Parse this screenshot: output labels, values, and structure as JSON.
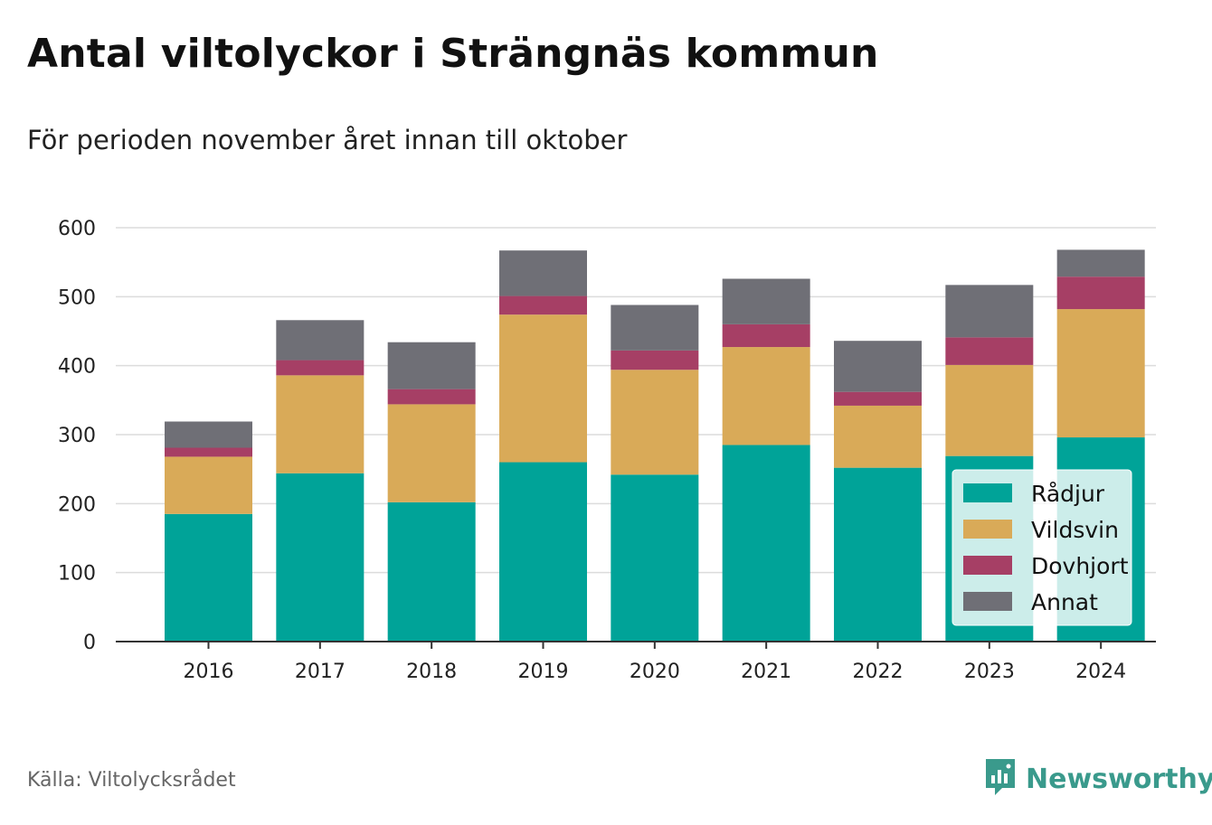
{
  "title": "Antal viltolyckor i Strängnäs kommun",
  "subtitle": "För perioden november året innan till oktober",
  "source": "Källa: Viltolycksrådet",
  "brand": {
    "name": "Newsworthy",
    "icon": "newsworthy-logo-icon",
    "color": "#3a9a8c"
  },
  "chart_data": {
    "type": "bar",
    "stacked": true,
    "categories": [
      "2016",
      "2017",
      "2018",
      "2019",
      "2020",
      "2021",
      "2022",
      "2023",
      "2024"
    ],
    "ylim": [
      0,
      600
    ],
    "yticks": [
      "0",
      "100",
      "200",
      "300",
      "400",
      "500",
      "600"
    ],
    "grid": true,
    "legend_position": "bottom-right",
    "series": [
      {
        "name": "Rådjur",
        "color": "#00a398",
        "values": [
          185,
          244,
          202,
          260,
          242,
          285,
          252,
          269,
          296
        ]
      },
      {
        "name": "Vildsvin",
        "color": "#d9aa58",
        "values": [
          83,
          142,
          142,
          214,
          152,
          142,
          90,
          132,
          186
        ]
      },
      {
        "name": "Dovhjort",
        "color": "#a63f65",
        "values": [
          13,
          22,
          22,
          27,
          28,
          33,
          20,
          40,
          47
        ]
      },
      {
        "name": "Annat",
        "color": "#6f6f76",
        "values": [
          38,
          58,
          68,
          66,
          66,
          66,
          74,
          76,
          39
        ]
      }
    ]
  }
}
